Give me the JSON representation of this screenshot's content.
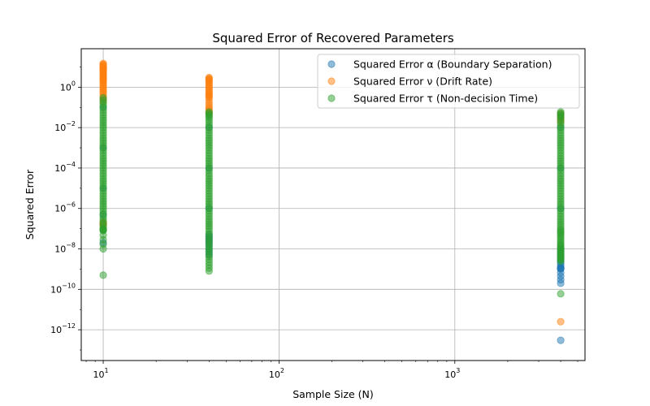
{
  "chart_data": {
    "type": "scatter",
    "title": "Squared Error of Recovered Parameters",
    "xlabel": "Sample Size (N)",
    "ylabel": "Squared Error",
    "xscale": "log",
    "yscale": "log",
    "xlim": [
      7.5,
      5500
    ],
    "ylim": [
      3e-14,
      80.0
    ],
    "x_ticks": [
      {
        "value": 10,
        "base": "10",
        "exp": "1"
      },
      {
        "value": 100,
        "base": "10",
        "exp": "2"
      },
      {
        "value": 1000,
        "base": "10",
        "exp": "3"
      }
    ],
    "y_ticks": [
      {
        "value": 1.0,
        "base": "10",
        "exp": "0"
      },
      {
        "value": 0.01,
        "base": "10",
        "exp": "−2"
      },
      {
        "value": 0.0001,
        "base": "10",
        "exp": "−4"
      },
      {
        "value": 1e-06,
        "base": "10",
        "exp": "−6"
      },
      {
        "value": 1e-08,
        "base": "10",
        "exp": "−8"
      },
      {
        "value": 1e-10,
        "base": "10",
        "exp": "−10"
      },
      {
        "value": 1e-12,
        "base": "10",
        "exp": "−12"
      }
    ],
    "grid": true,
    "legend_position": "top-right",
    "series": [
      {
        "name": "Squared Error α (Boundary Separation)",
        "color": "#1f77b4",
        "points": [
          [
            10,
            2e-08
          ],
          [
            10,
            5e-07
          ],
          [
            10,
            1e-05
          ],
          [
            10,
            0.001
          ],
          [
            10,
            0.1
          ],
          [
            40,
            5e-09
          ],
          [
            40,
            2e-08
          ],
          [
            40,
            5e-08
          ],
          [
            40,
            1e-06
          ],
          [
            40,
            0.0001
          ],
          [
            40,
            0.01
          ],
          [
            4000,
            3e-13
          ],
          [
            4000,
            2e-10
          ],
          [
            4000,
            1e-09
          ],
          [
            4000,
            1.2e-09
          ],
          [
            4000,
            3e-09
          ],
          [
            4000,
            1e-08
          ],
          [
            4000,
            1e-06
          ],
          [
            4000,
            0.0001
          ],
          [
            4000,
            0.01
          ]
        ]
      },
      {
        "name": "Squared Error ν (Drift Rate)",
        "color": "#ff7f0e",
        "points": [
          [
            10,
            15.0
          ],
          [
            10,
            10.0
          ],
          [
            10,
            8
          ],
          [
            10,
            5
          ],
          [
            10,
            3
          ],
          [
            10,
            2
          ],
          [
            10,
            1
          ],
          [
            10,
            0.5
          ],
          [
            10,
            0.2
          ],
          [
            10,
            2e-07
          ],
          [
            10,
            1.5e-07
          ],
          [
            40,
            3
          ],
          [
            40,
            2
          ],
          [
            40,
            1
          ],
          [
            40,
            0.5
          ],
          [
            40,
            0.3
          ],
          [
            40,
            0.1
          ],
          [
            40,
            0.05
          ],
          [
            4000,
            2.5e-12
          ],
          [
            4000,
            0.05
          ],
          [
            4000,
            0.02
          ]
        ]
      },
      {
        "name": "Squared Error τ (Non-decision Time)",
        "color": "#2ca02c",
        "points": [
          [
            10,
            5e-10
          ],
          [
            10,
            1e-08
          ],
          [
            10,
            8e-08
          ],
          [
            10,
            1e-07
          ],
          [
            10,
            3e-07
          ],
          [
            10,
            1e-06
          ],
          [
            10,
            3e-06
          ],
          [
            10,
            1e-05
          ],
          [
            10,
            3e-05
          ],
          [
            10,
            0.0001
          ],
          [
            10,
            0.0003
          ],
          [
            10,
            0.001
          ],
          [
            10,
            0.003
          ],
          [
            10,
            0.01
          ],
          [
            10,
            0.03
          ],
          [
            10,
            0.1
          ],
          [
            10,
            0.3
          ],
          [
            40,
            8e-10
          ],
          [
            40,
            3e-09
          ],
          [
            40,
            1e-08
          ],
          [
            40,
            3e-08
          ],
          [
            40,
            1e-07
          ],
          [
            40,
            3e-07
          ],
          [
            40,
            1e-06
          ],
          [
            40,
            3e-06
          ],
          [
            40,
            1e-05
          ],
          [
            40,
            3e-05
          ],
          [
            40,
            0.0001
          ],
          [
            40,
            0.0003
          ],
          [
            40,
            0.001
          ],
          [
            40,
            0.003
          ],
          [
            40,
            0.01
          ],
          [
            40,
            0.03
          ],
          [
            40,
            0.06
          ],
          [
            4000,
            6e-11
          ],
          [
            4000,
            2.5e-09
          ],
          [
            4000,
            5e-09
          ],
          [
            4000,
            1e-08
          ],
          [
            4000,
            2e-08
          ],
          [
            4000,
            5e-08
          ],
          [
            4000,
            1e-07
          ],
          [
            4000,
            3e-07
          ],
          [
            4000,
            1e-06
          ],
          [
            4000,
            3e-06
          ],
          [
            4000,
            1e-05
          ],
          [
            4000,
            3e-05
          ],
          [
            4000,
            0.0001
          ],
          [
            4000,
            0.0003
          ],
          [
            4000,
            0.001
          ],
          [
            4000,
            0.003
          ],
          [
            4000,
            0.01
          ],
          [
            4000,
            0.03
          ],
          [
            4000,
            0.06
          ]
        ]
      }
    ]
  }
}
